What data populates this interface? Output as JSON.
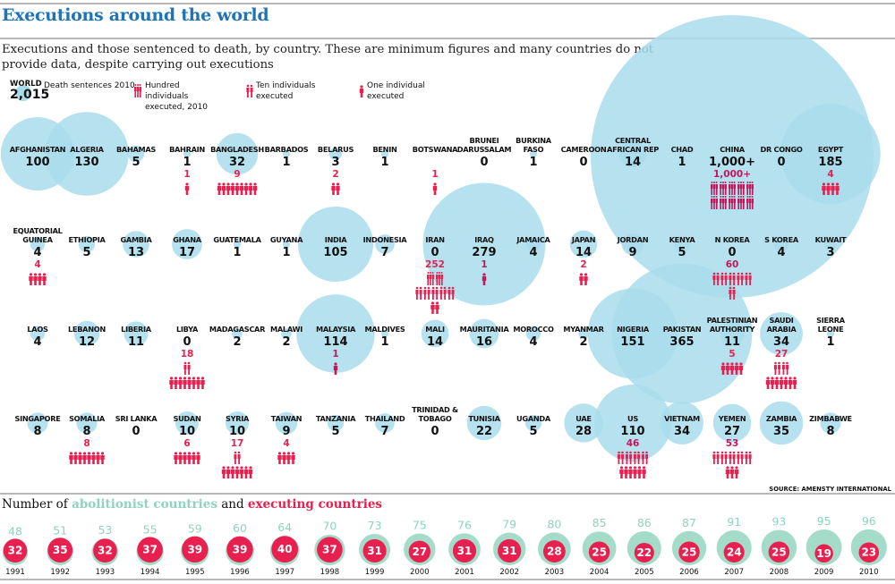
{
  "title": "Executions around the world",
  "subtitle": "Executions and those sentenced to death, by country. These are minimum figures and many countries do not provide data, despite carrying out executions",
  "legend": {
    "world_label": "WORLD",
    "world_value": "2,015",
    "world_caption": "Death sentences 2010",
    "hundred": "Hundred individuals executed, 2010",
    "ten": "Ten individuals executed",
    "one": "One individual executed"
  },
  "source": "SOURCE: AMENSTY INTERNATIONAL",
  "bottom_title": {
    "prefix": "Number of ",
    "abolitionist": "abolitionist countries",
    "middle": " and ",
    "executing": "executing countries"
  },
  "colors": {
    "bubble": "#a9dcec",
    "bubble_overlap": "#5ec3dc",
    "execution": "#e8204f",
    "execution_dark": "#c2185b",
    "abolitionist": "#a5dcc9",
    "title": "#1f74b8"
  },
  "chart_data": [
    {
      "type": "bubble",
      "title": "Executions around the world",
      "size_measure": "Death sentences 2010",
      "icon_measure": "Executions 2010 (hundred / ten / one individual icons)",
      "world_death_sentences": "2,015",
      "countries": [
        {
          "name": "AFGHANISTAN",
          "sentences": "100",
          "executions": null
        },
        {
          "name": "ALGERIA",
          "sentences": "130",
          "executions": null
        },
        {
          "name": "BAHAMAS",
          "sentences": "5",
          "executions": null
        },
        {
          "name": "BAHRAIN",
          "sentences": "1",
          "executions": "1"
        },
        {
          "name": "BANGLADESH",
          "sentences": "32",
          "executions": "9"
        },
        {
          "name": "BARBADOS",
          "sentences": "1",
          "executions": null
        },
        {
          "name": "BELARUS",
          "sentences": "3",
          "executions": "2"
        },
        {
          "name": "BENIN",
          "sentences": "1",
          "executions": null
        },
        {
          "name": "BOTSWANA",
          "sentences": "",
          "executions": "1"
        },
        {
          "name": "BRUNEI DARUSSALAM",
          "sentences": "0",
          "executions": null
        },
        {
          "name": "BURKINA FASO",
          "sentences": "1",
          "executions": null
        },
        {
          "name": "CAMEROON",
          "sentences": "0",
          "executions": null
        },
        {
          "name": "CENTRAL AFRICAN REP",
          "sentences": "14",
          "executions": null
        },
        {
          "name": "CHAD",
          "sentences": "1",
          "executions": null
        },
        {
          "name": "CHINA",
          "sentences": "1,000+",
          "executions": "1,000+"
        },
        {
          "name": "DR CONGO",
          "sentences": "0",
          "executions": null
        },
        {
          "name": "EGYPT",
          "sentences": "185",
          "executions": "4"
        },
        {
          "name": "EQUATORIAL GUINEA",
          "sentences": "4",
          "executions": "4"
        },
        {
          "name": "ETHIOPIA",
          "sentences": "5",
          "executions": null
        },
        {
          "name": "GAMBIA",
          "sentences": "13",
          "executions": null
        },
        {
          "name": "GHANA",
          "sentences": "17",
          "executions": null
        },
        {
          "name": "GUATEMALA",
          "sentences": "1",
          "executions": null
        },
        {
          "name": "GUYANA",
          "sentences": "1",
          "executions": null
        },
        {
          "name": "INDIA",
          "sentences": "105",
          "executions": null
        },
        {
          "name": "INDONESIA",
          "sentences": "7",
          "executions": null
        },
        {
          "name": "IRAN",
          "sentences": "0",
          "executions": "252"
        },
        {
          "name": "IRAQ",
          "sentences": "279",
          "executions": "1"
        },
        {
          "name": "JAMAICA",
          "sentences": "4",
          "executions": null
        },
        {
          "name": "JAPAN",
          "sentences": "14",
          "executions": "2"
        },
        {
          "name": "JORDAN",
          "sentences": "9",
          "executions": null
        },
        {
          "name": "KENYA",
          "sentences": "5",
          "executions": null
        },
        {
          "name": "N KOREA",
          "sentences": "0",
          "executions": "60"
        },
        {
          "name": "S KOREA",
          "sentences": "4",
          "executions": null
        },
        {
          "name": "KUWAIT",
          "sentences": "3",
          "executions": null
        },
        {
          "name": "LAOS",
          "sentences": "4",
          "executions": null
        },
        {
          "name": "LEBANON",
          "sentences": "12",
          "executions": null
        },
        {
          "name": "LIBERIA",
          "sentences": "11",
          "executions": null
        },
        {
          "name": "LIBYA",
          "sentences": "0",
          "executions": "18"
        },
        {
          "name": "MADAGASCAR",
          "sentences": "2",
          "executions": null
        },
        {
          "name": "MALAWI",
          "sentences": "2",
          "executions": null
        },
        {
          "name": "MALAYSIA",
          "sentences": "114",
          "executions": "1"
        },
        {
          "name": "MALDIVES",
          "sentences": "1",
          "executions": null
        },
        {
          "name": "MALI",
          "sentences": "14",
          "executions": null
        },
        {
          "name": "MAURITANIA",
          "sentences": "16",
          "executions": null
        },
        {
          "name": "MOROCCO",
          "sentences": "4",
          "executions": null
        },
        {
          "name": "MYANMAR",
          "sentences": "2",
          "executions": null
        },
        {
          "name": "NIGERIA",
          "sentences": "151",
          "executions": null
        },
        {
          "name": "PAKISTAN",
          "sentences": "365",
          "executions": null
        },
        {
          "name": "PALESTINIAN AUTHORITY",
          "sentences": "11",
          "executions": "5"
        },
        {
          "name": "SAUDI ARABIA",
          "sentences": "34",
          "executions": "27"
        },
        {
          "name": "SIERRA LEONE",
          "sentences": "1",
          "executions": null
        },
        {
          "name": "SINGAPORE",
          "sentences": "8",
          "executions": null
        },
        {
          "name": "SOMALIA",
          "sentences": "8",
          "executions": "8"
        },
        {
          "name": "SRI LANKA",
          "sentences": "0",
          "executions": null
        },
        {
          "name": "SUDAN",
          "sentences": "10",
          "executions": "6"
        },
        {
          "name": "SYRIA",
          "sentences": "10",
          "executions": "17"
        },
        {
          "name": "TAIWAN",
          "sentences": "9",
          "executions": "4"
        },
        {
          "name": "TANZANIA",
          "sentences": "5",
          "executions": null
        },
        {
          "name": "THAILAND",
          "sentences": "7",
          "executions": null
        },
        {
          "name": "TRINIDAD & TOBAGO",
          "sentences": "0",
          "executions": null
        },
        {
          "name": "TUNISIA",
          "sentences": "22",
          "executions": null
        },
        {
          "name": "UGANDA",
          "sentences": "5",
          "executions": null
        },
        {
          "name": "UAE",
          "sentences": "28",
          "executions": null
        },
        {
          "name": "US",
          "sentences": "110",
          "executions": "46"
        },
        {
          "name": "VIETNAM",
          "sentences": "34",
          "executions": null
        },
        {
          "name": "YEMEN",
          "sentences": "27",
          "executions": "53"
        },
        {
          "name": "ZAMBIA",
          "sentences": "35",
          "executions": null
        },
        {
          "name": "ZIMBABWE",
          "sentences": "8",
          "executions": null
        }
      ]
    },
    {
      "type": "bubble",
      "title": "Number of abolitionist countries and executing countries",
      "categories": [
        "1991",
        "1992",
        "1993",
        "1994",
        "1995",
        "1996",
        "1997",
        "1998",
        "1999",
        "2000",
        "2001",
        "2002",
        "2003",
        "2004",
        "2005",
        "2006",
        "2007",
        "2008",
        "2009",
        "2010"
      ],
      "series": [
        {
          "name": "abolitionist countries",
          "values": [
            48,
            51,
            53,
            55,
            59,
            60,
            64,
            70,
            73,
            75,
            76,
            79,
            80,
            85,
            86,
            87,
            91,
            93,
            95,
            96
          ]
        },
        {
          "name": "executing countries",
          "values": [
            32,
            35,
            32,
            37,
            39,
            39,
            40,
            37,
            31,
            27,
            31,
            31,
            28,
            25,
            22,
            25,
            24,
            25,
            19,
            23
          ]
        }
      ]
    }
  ]
}
